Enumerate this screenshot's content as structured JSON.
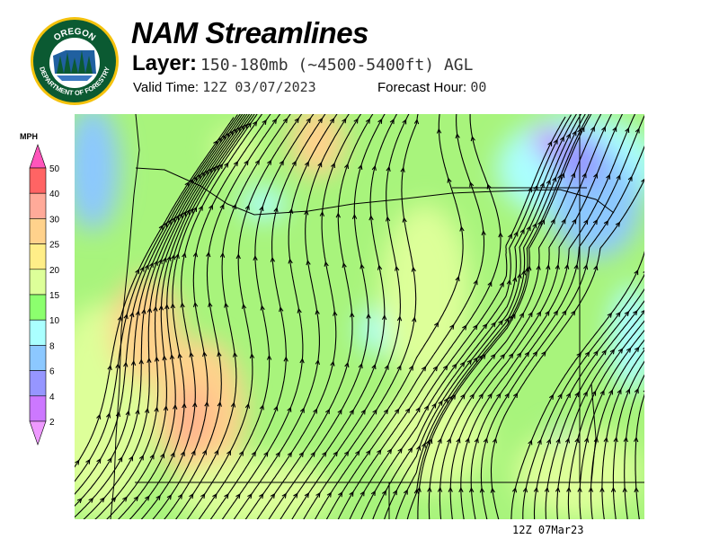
{
  "header": {
    "title": "NAM Streamlines",
    "layer_label": "Layer:",
    "layer_value": "150-180mb (~4500-5400ft) AGL",
    "valid_label": "Valid Time:",
    "valid_value": "12Z 03/07/2023",
    "forecast_label": "Forecast Hour:",
    "forecast_value": "00"
  },
  "logo": {
    "top_text": "OREGON",
    "bottom_text": "DEPARTMENT OF FORESTRY"
  },
  "legend": {
    "unit": "MPH",
    "labels": [
      "50",
      "40",
      "30",
      "25",
      "20",
      "15",
      "10",
      "8",
      "6",
      "4",
      "2"
    ],
    "colors": [
      "#ff55bb",
      "#ff6464",
      "#ffaa99",
      "#ffd28c",
      "#ffee88",
      "#ddff99",
      "#8cff6e",
      "#aaffff",
      "#8cc8ff",
      "#9696ff",
      "#cc78ff",
      "#ee99ff"
    ]
  },
  "map": {
    "base_color": "#a8f47c",
    "timestamp": "12Z 07Mar23"
  }
}
